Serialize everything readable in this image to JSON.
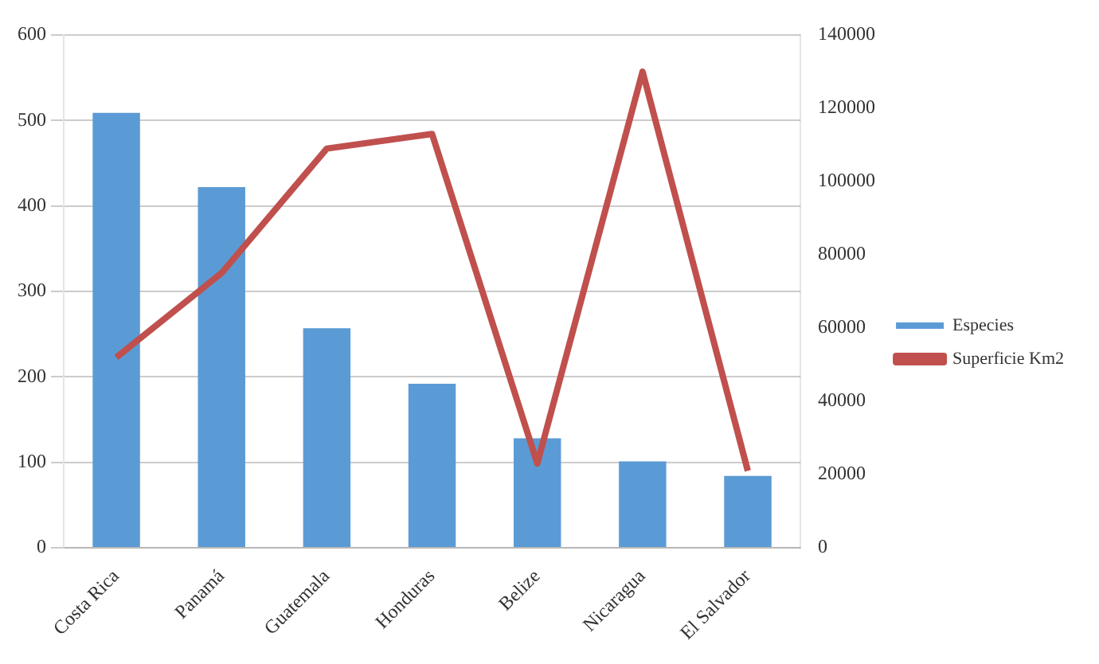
{
  "chart_data": {
    "type": "bar",
    "categories": [
      "Costa Rica",
      "Panamá",
      "Guatemala",
      "Honduras",
      "Belize",
      "Nicaragua",
      "El Salvador"
    ],
    "series": [
      {
        "name": "Especies",
        "color": "#5b9bd5",
        "values": [
          509,
          422,
          257,
          192,
          128,
          101,
          84
        ]
      },
      {
        "name": "Superficie Km2",
        "type": "line",
        "axis": "y2",
        "color": "#c0504d",
        "values": [
          52000,
          75000,
          109000,
          113000,
          23000,
          130000,
          21000
        ]
      }
    ],
    "ylim": [
      0,
      600
    ],
    "yticks": [
      0,
      100,
      200,
      300,
      400,
      500,
      600
    ],
    "y2lim": [
      0,
      140000
    ],
    "y2ticks": [
      0,
      20000,
      40000,
      60000,
      80000,
      100000,
      120000,
      140000
    ],
    "grid": "y",
    "legend": "right",
    "marker": "none"
  }
}
